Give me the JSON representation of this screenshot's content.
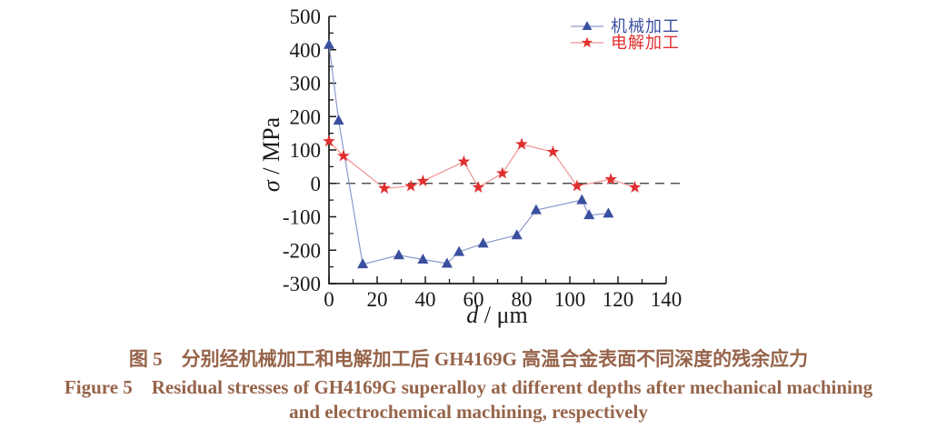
{
  "figure": {
    "caption_zh": "图 5　分别经机械加工和电解加工后 GH4169G 高温合金表面不同深度的残余应力",
    "caption_en_line1": "Figure 5　Residual stresses of GH4169G superalloy at different depths after mechanical machining",
    "caption_en_line2": "and electrochemical machining, respectively",
    "caption_color": "#96644a"
  },
  "axes": {
    "ylabel_italic": "σ",
    "ylabel_rest": " / MPa",
    "xlabel_italic": "d",
    "xlabel_rest": " / μm"
  },
  "chart_data": {
    "type": "line",
    "title": "",
    "xlabel": "d / μm",
    "ylabel": "σ / MPa",
    "xlim": [
      0,
      140
    ],
    "ylim": [
      -300,
      500
    ],
    "x_major_ticks": [
      0,
      20,
      40,
      60,
      80,
      100,
      120,
      140
    ],
    "x_minor_step": 10,
    "y_major_ticks": [
      -300,
      -200,
      -100,
      0,
      100,
      200,
      300,
      400,
      500
    ],
    "y_minor_step": 50,
    "grid": false,
    "zero_line": "dashed",
    "legend_position": "top-right",
    "axis_color": "#1a1a1a",
    "series": [
      {
        "name": "机械加工",
        "marker": "triangle",
        "marker_color": "#3a4f9f",
        "line_color": "#8d99cc",
        "points": [
          [
            0,
            415
          ],
          [
            4,
            188
          ],
          [
            14,
            -242
          ],
          [
            29,
            -215
          ],
          [
            39,
            -228
          ],
          [
            49,
            -240
          ],
          [
            54,
            -205
          ],
          [
            64,
            -180
          ],
          [
            78,
            -155
          ],
          [
            86,
            -80
          ],
          [
            105,
            -50
          ],
          [
            108,
            -95
          ],
          [
            116,
            -90
          ]
        ]
      },
      {
        "name": "电解加工",
        "marker": "star",
        "marker_color": "#e02f2f",
        "line_color": "#f09393",
        "points": [
          [
            0,
            126
          ],
          [
            6,
            82
          ],
          [
            23,
            -15
          ],
          [
            34,
            -8
          ],
          [
            39,
            7
          ],
          [
            56,
            65
          ],
          [
            62,
            -12
          ],
          [
            72,
            30
          ],
          [
            80,
            117
          ],
          [
            93,
            94
          ],
          [
            103,
            -8
          ],
          [
            117,
            12
          ],
          [
            127,
            -12
          ]
        ]
      }
    ]
  }
}
